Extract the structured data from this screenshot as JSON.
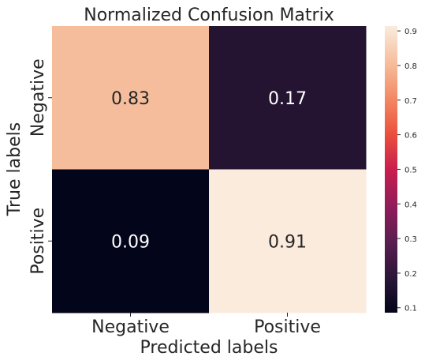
{
  "chart_data": {
    "type": "heatmap",
    "title": "Normalized Confusion Matrix",
    "xlabel": "Predicted labels",
    "ylabel": "True labels",
    "x_categories": [
      "Negative",
      "Positive"
    ],
    "y_categories": [
      "Negative",
      "Positive"
    ],
    "values": [
      [
        0.83,
        0.17
      ],
      [
        0.09,
        0.91
      ]
    ],
    "cell_labels": [
      [
        "0.83",
        "0.17"
      ],
      [
        "0.09",
        "0.91"
      ]
    ],
    "colorbar": {
      "range": [
        0.0857,
        0.914
      ],
      "ticks": [
        "0.1",
        "0.2",
        "0.3",
        "0.4",
        "0.5",
        "0.6",
        "0.7",
        "0.8",
        "0.9"
      ],
      "tick_values": [
        0.1,
        0.2,
        0.3,
        0.4,
        0.5,
        0.6,
        0.7,
        0.8,
        0.9
      ]
    },
    "colormap": "rocket",
    "colors": {
      "cell_0_0": "#f6bd9c",
      "cell_0_1": "#241432",
      "cell_1_0": "#03051a",
      "cell_1_1": "#faebdd",
      "dark_text": "#262626",
      "light_text": "#ffffff"
    }
  }
}
